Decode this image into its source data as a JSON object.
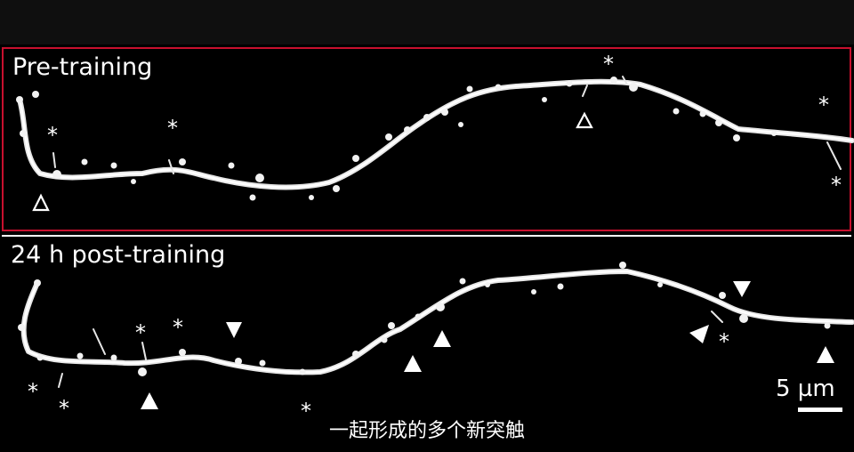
{
  "panels": {
    "pre": {
      "label": "Pre-training"
    },
    "post": {
      "label": "24 h post-training"
    }
  },
  "markers": {
    "asterisk": "*",
    "open_triangle": "Δ"
  },
  "scale_bar": {
    "label": "5 µm"
  },
  "subtitle": "一起形成的多个新突触",
  "colors": {
    "pre_border": "#c8102e",
    "post_border": "#ffffff",
    "background": "#000000"
  }
}
